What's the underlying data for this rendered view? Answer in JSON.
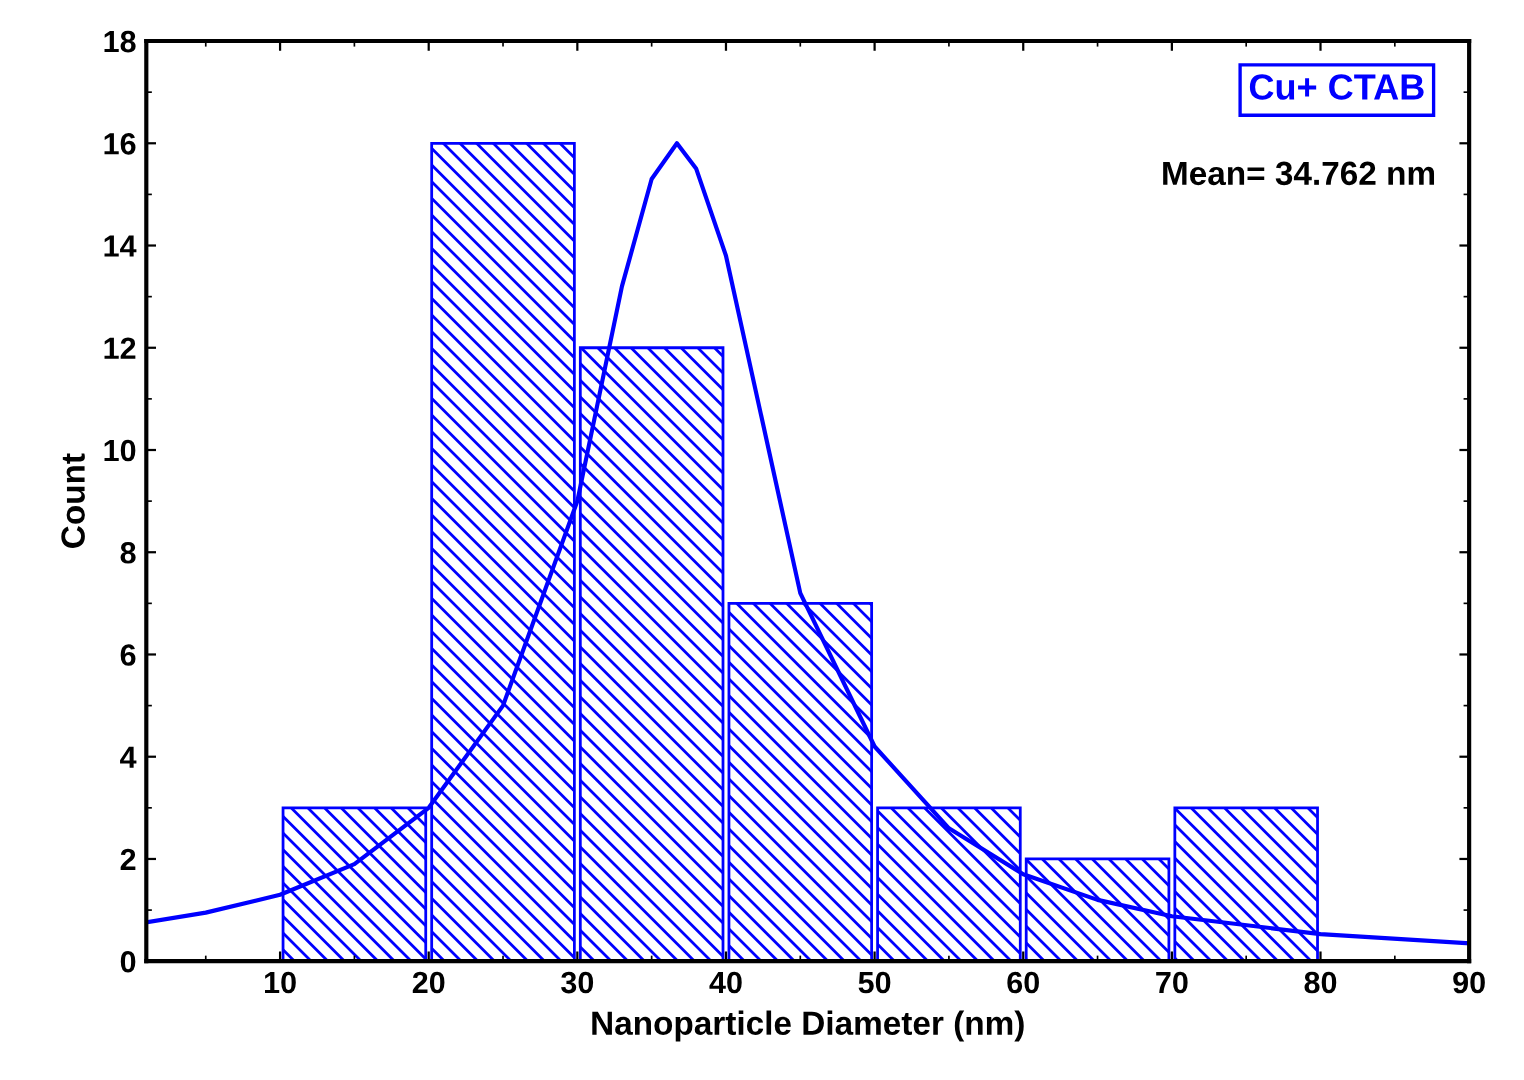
{
  "chart_data": {
    "type": "histogram",
    "xlabel": "Nanoparticle Diameter (nm)",
    "ylabel": "Count",
    "bins": [
      10,
      20,
      30,
      40,
      50,
      60,
      70,
      80
    ],
    "series": [
      {
        "color": "#0000ff",
        "values": [
          3,
          16,
          12,
          7,
          3,
          2,
          3
        ]
      },
      {
        "type": "line",
        "color": "#0000ff",
        "x": [
          1,
          5,
          10,
          15,
          20,
          25,
          30,
          33,
          35,
          36.7,
          38,
          40,
          45,
          50,
          55,
          60,
          65,
          70,
          80,
          90
        ],
        "values": [
          0.76,
          0.95,
          1.3,
          1.9,
          3.0,
          5.0,
          9.0,
          13.2,
          15.3,
          16,
          15.5,
          13.8,
          7.2,
          4.2,
          2.6,
          1.7,
          1.2,
          0.88,
          0.53,
          0.35
        ]
      }
    ],
    "annotations": [
      "Cu+ CTAB",
      "Mean= 34.762 nm"
    ],
    "xlim": [
      1,
      90
    ],
    "xticks": [
      10,
      20,
      30,
      40,
      50,
      60,
      70,
      80,
      90
    ],
    "ylim": [
      0,
      18
    ],
    "yticks": [
      0,
      2,
      4,
      6,
      8,
      10,
      12,
      14,
      16,
      18
    ],
    "grid": false,
    "legend": false
  }
}
